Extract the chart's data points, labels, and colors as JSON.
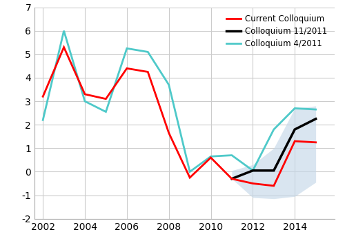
{
  "red_years": [
    2002,
    2003,
    2004,
    2005,
    2006,
    2007,
    2008,
    2009,
    2010,
    2011,
    2012,
    2013,
    2014,
    2015
  ],
  "red_values": [
    3.2,
    5.3,
    3.3,
    3.1,
    4.4,
    4.25,
    1.65,
    -0.25,
    0.6,
    -0.3,
    -0.5,
    -0.6,
    1.3,
    1.25
  ],
  "black_years": [
    2011,
    2012,
    2013,
    2014,
    2015
  ],
  "black_values": [
    -0.3,
    0.05,
    0.05,
    1.8,
    2.25
  ],
  "cyan_years": [
    2002,
    2003,
    2004,
    2005,
    2006,
    2007,
    2008,
    2009,
    2010,
    2011,
    2012,
    2013,
    2014,
    2015
  ],
  "cyan_values": [
    2.2,
    6.0,
    3.0,
    2.55,
    5.25,
    5.1,
    3.7,
    0.0,
    0.65,
    0.7,
    0.05,
    1.8,
    2.7,
    2.65
  ],
  "shade_years": [
    2011,
    2012,
    2013,
    2014,
    2015
  ],
  "shade_upper": [
    0.05,
    0.3,
    1.0,
    2.7,
    2.8
  ],
  "shade_lower": [
    -0.3,
    -1.1,
    -1.15,
    -1.05,
    -0.45
  ],
  "ylim": [
    -2,
    7
  ],
  "xlim": [
    2001.6,
    2015.9
  ],
  "yticks": [
    -2,
    -1,
    0,
    1,
    2,
    3,
    4,
    5,
    6,
    7
  ],
  "xticks": [
    2002,
    2004,
    2006,
    2008,
    2010,
    2012,
    2014
  ],
  "red_color": "#ff0000",
  "black_color": "#000000",
  "cyan_color": "#4ec9c9",
  "shade_color": "#c5d8e8",
  "legend_labels": [
    "Current Colloquium",
    "Colloquium 11/2011",
    "Colloquium 4/2011"
  ],
  "legend_colors": [
    "#ff0000",
    "#000000",
    "#4ec9c9"
  ]
}
